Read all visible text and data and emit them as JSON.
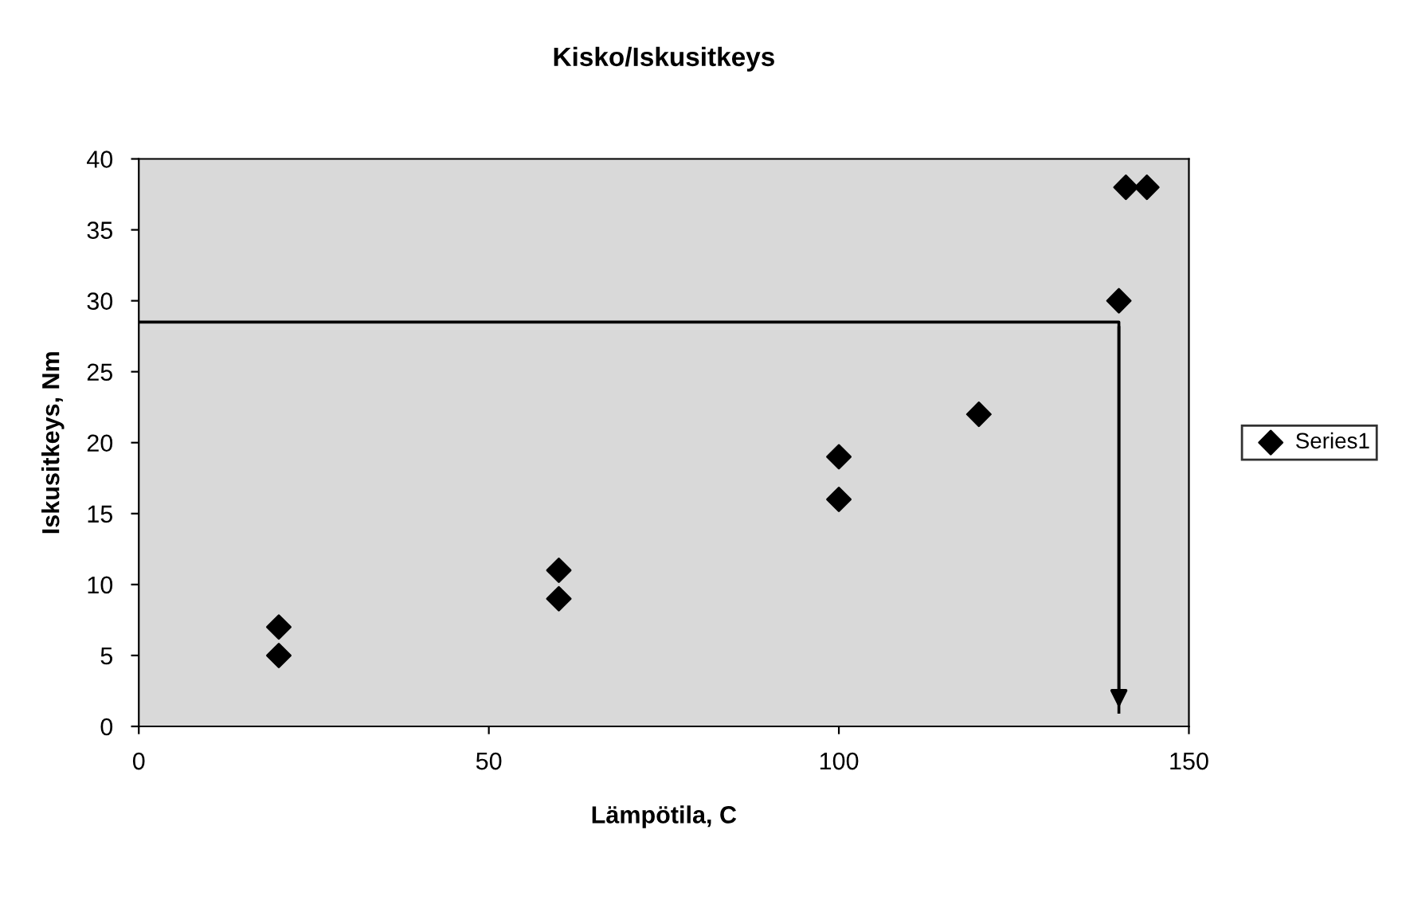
{
  "chart_data": {
    "type": "scatter",
    "title": "Kisko/Iskusitkeys",
    "xlabel": "Lämpötila, C",
    "ylabel": "Iskusitkeys, Nm",
    "series": [
      {
        "name": "Series1",
        "color": "#000000",
        "marker": "diamond",
        "x": [
          20,
          20,
          60,
          60,
          100,
          100,
          120,
          140,
          141,
          144
        ],
        "values": [
          7,
          5,
          11,
          9,
          19,
          16,
          22,
          30,
          38,
          38
        ]
      },
      {
        "type": "line",
        "color": "#000000",
        "marker": "none",
        "x": [
          0,
          140,
          140
        ],
        "values": [
          28.5,
          28.5,
          1
        ]
      }
    ],
    "xlim": [
      0,
      150
    ],
    "xticks": [
      0,
      50,
      100,
      150
    ],
    "ylim": [
      0,
      40
    ],
    "yticks": [
      0,
      5,
      10,
      15,
      20,
      25,
      30,
      35,
      40
    ],
    "grid": false,
    "legend": "right"
  }
}
